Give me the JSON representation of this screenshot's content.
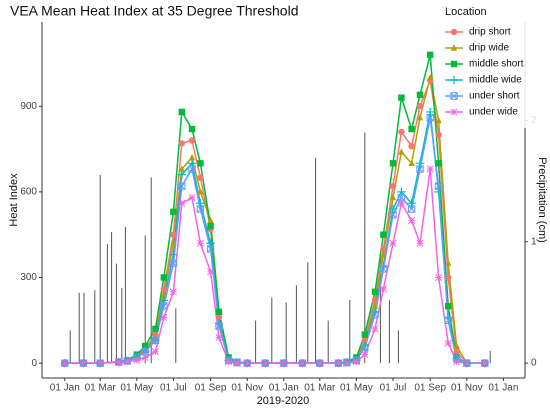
{
  "chart_data": {
    "type": "line",
    "title": "VEA Mean Heat Index at 35 Degree Threshold",
    "x_label": "2019-2020",
    "y_label": "Heat Index",
    "y2_label": "Precipitation (cm)",
    "legend_title": "Location",
    "legend": "top-right",
    "grid": false,
    "xlim": [
      "2018-11-24",
      "2021-02-06"
    ],
    "xticks": [
      {
        "value": "2019-01-01",
        "label": "01 Jan"
      },
      {
        "value": "2019-03-01",
        "label": "01 Mar"
      },
      {
        "value": "2019-05-01",
        "label": "01 May"
      },
      {
        "value": "2019-07-01",
        "label": "01 Jul"
      },
      {
        "value": "2019-09-01",
        "label": "01 Sep"
      },
      {
        "value": "2019-11-01",
        "label": "01 Nov"
      },
      {
        "value": "2020-01-01",
        "label": "01 Jan"
      },
      {
        "value": "2020-03-01",
        "label": "01 Mar"
      },
      {
        "value": "2020-05-01",
        "label": "01 May"
      },
      {
        "value": "2020-07-01",
        "label": "01 Jul"
      },
      {
        "value": "2020-09-01",
        "label": "01 Sep"
      },
      {
        "value": "2020-11-01",
        "label": "01 Nov"
      },
      {
        "value": "2021-01-01",
        "label": "01 Jan"
      }
    ],
    "ylim": [
      -52,
      1195
    ],
    "yticks": [
      0,
      300,
      600,
      900
    ],
    "y2lim": [
      -0.123,
      2.81
    ],
    "y2ticks": [
      0,
      1,
      2
    ],
    "x": [
      "2019-01-01",
      "2019-02-01",
      "2019-03-01",
      "2019-04-01",
      "2019-04-15",
      "2019-05-01",
      "2019-05-15",
      "2019-06-01",
      "2019-06-15",
      "2019-07-01",
      "2019-07-15",
      "2019-08-01",
      "2019-08-15",
      "2019-09-01",
      "2019-09-15",
      "2019-10-01",
      "2019-10-15",
      "2019-11-01",
      "2019-12-01",
      "2020-01-01",
      "2020-02-01",
      "2020-03-01",
      "2020-04-01",
      "2020-04-15",
      "2020-05-01",
      "2020-05-15",
      "2020-06-01",
      "2020-06-15",
      "2020-07-01",
      "2020-07-15",
      "2020-08-01",
      "2020-08-15",
      "2020-09-01",
      "2020-09-15",
      "2020-10-01",
      "2020-10-15",
      "2020-11-01",
      "2020-12-01"
    ],
    "series": [
      {
        "name": "drip short",
        "color": "#F8766D",
        "marker": "circle",
        "values": [
          0,
          0,
          0,
          5,
          10,
          25,
          50,
          100,
          260,
          450,
          770,
          780,
          650,
          470,
          160,
          15,
          3,
          0,
          0,
          0,
          0,
          0,
          0,
          3,
          15,
          80,
          220,
          400,
          620,
          810,
          760,
          900,
          990,
          800,
          300,
          40,
          0,
          0
        ]
      },
      {
        "name": "drip wide",
        "color": "#B79F00",
        "marker": "triangle",
        "values": [
          0,
          0,
          0,
          5,
          10,
          25,
          45,
          90,
          240,
          420,
          680,
          720,
          600,
          500,
          180,
          18,
          3,
          0,
          0,
          0,
          0,
          0,
          0,
          3,
          15,
          70,
          200,
          380,
          580,
          740,
          700,
          860,
          1000,
          850,
          350,
          60,
          0,
          0
        ]
      },
      {
        "name": "middle short",
        "color": "#00BA38",
        "marker": "square",
        "values": [
          0,
          0,
          0,
          5,
          10,
          30,
          60,
          120,
          300,
          530,
          880,
          820,
          700,
          480,
          180,
          20,
          5,
          0,
          0,
          0,
          0,
          0,
          0,
          5,
          20,
          100,
          250,
          450,
          700,
          930,
          820,
          940,
          1080,
          700,
          200,
          20,
          0,
          0
        ]
      },
      {
        "name": "middle wide",
        "color": "#00BFC4",
        "marker": "plus",
        "values": [
          0,
          0,
          0,
          4,
          8,
          20,
          40,
          80,
          220,
          380,
          660,
          700,
          560,
          420,
          140,
          10,
          2,
          0,
          0,
          0,
          0,
          0,
          0,
          2,
          10,
          60,
          180,
          340,
          540,
          600,
          560,
          700,
          880,
          600,
          160,
          15,
          0,
          0
        ]
      },
      {
        "name": "under short",
        "color": "#619CFF",
        "marker": "boxcross",
        "values": [
          0,
          0,
          0,
          4,
          8,
          20,
          40,
          80,
          200,
          350,
          620,
          680,
          540,
          400,
          130,
          10,
          2,
          0,
          0,
          0,
          0,
          0,
          0,
          2,
          10,
          55,
          170,
          330,
          520,
          580,
          540,
          680,
          860,
          620,
          150,
          15,
          0,
          0
        ]
      },
      {
        "name": "under wide",
        "color": "#F564E3",
        "marker": "star",
        "values": [
          0,
          0,
          0,
          3,
          5,
          10,
          20,
          40,
          160,
          250,
          560,
          580,
          420,
          320,
          90,
          5,
          0,
          0,
          0,
          0,
          0,
          0,
          0,
          0,
          5,
          30,
          120,
          260,
          420,
          560,
          500,
          420,
          680,
          300,
          70,
          5,
          0,
          0
        ]
      }
    ],
    "bars": {
      "axis": "y2",
      "color": "#555555",
      "x": [
        "2019-01-10",
        "2019-01-25",
        "2019-02-02",
        "2019-02-20",
        "2019-03-01",
        "2019-03-13",
        "2019-03-20",
        "2019-03-28",
        "2019-04-06",
        "2019-04-12",
        "2019-05-15",
        "2019-05-25",
        "2019-07-05",
        "2019-11-15",
        "2019-12-12",
        "2020-01-05",
        "2020-01-22",
        "2020-02-10",
        "2020-02-23",
        "2020-03-15",
        "2020-04-20",
        "2020-05-15",
        "2020-06-10",
        "2020-06-25",
        "2020-07-10",
        "2020-12-10"
      ],
      "values": [
        0.27,
        0.58,
        0.58,
        0.6,
        1.55,
        0.98,
        1.08,
        0.82,
        0.62,
        1.12,
        1.05,
        1.53,
        0.45,
        0.35,
        0.54,
        0.5,
        0.64,
        0.83,
        1.69,
        0.35,
        0.52,
        1.9,
        0.9,
        0.52,
        0.27,
        0.1
      ]
    }
  }
}
